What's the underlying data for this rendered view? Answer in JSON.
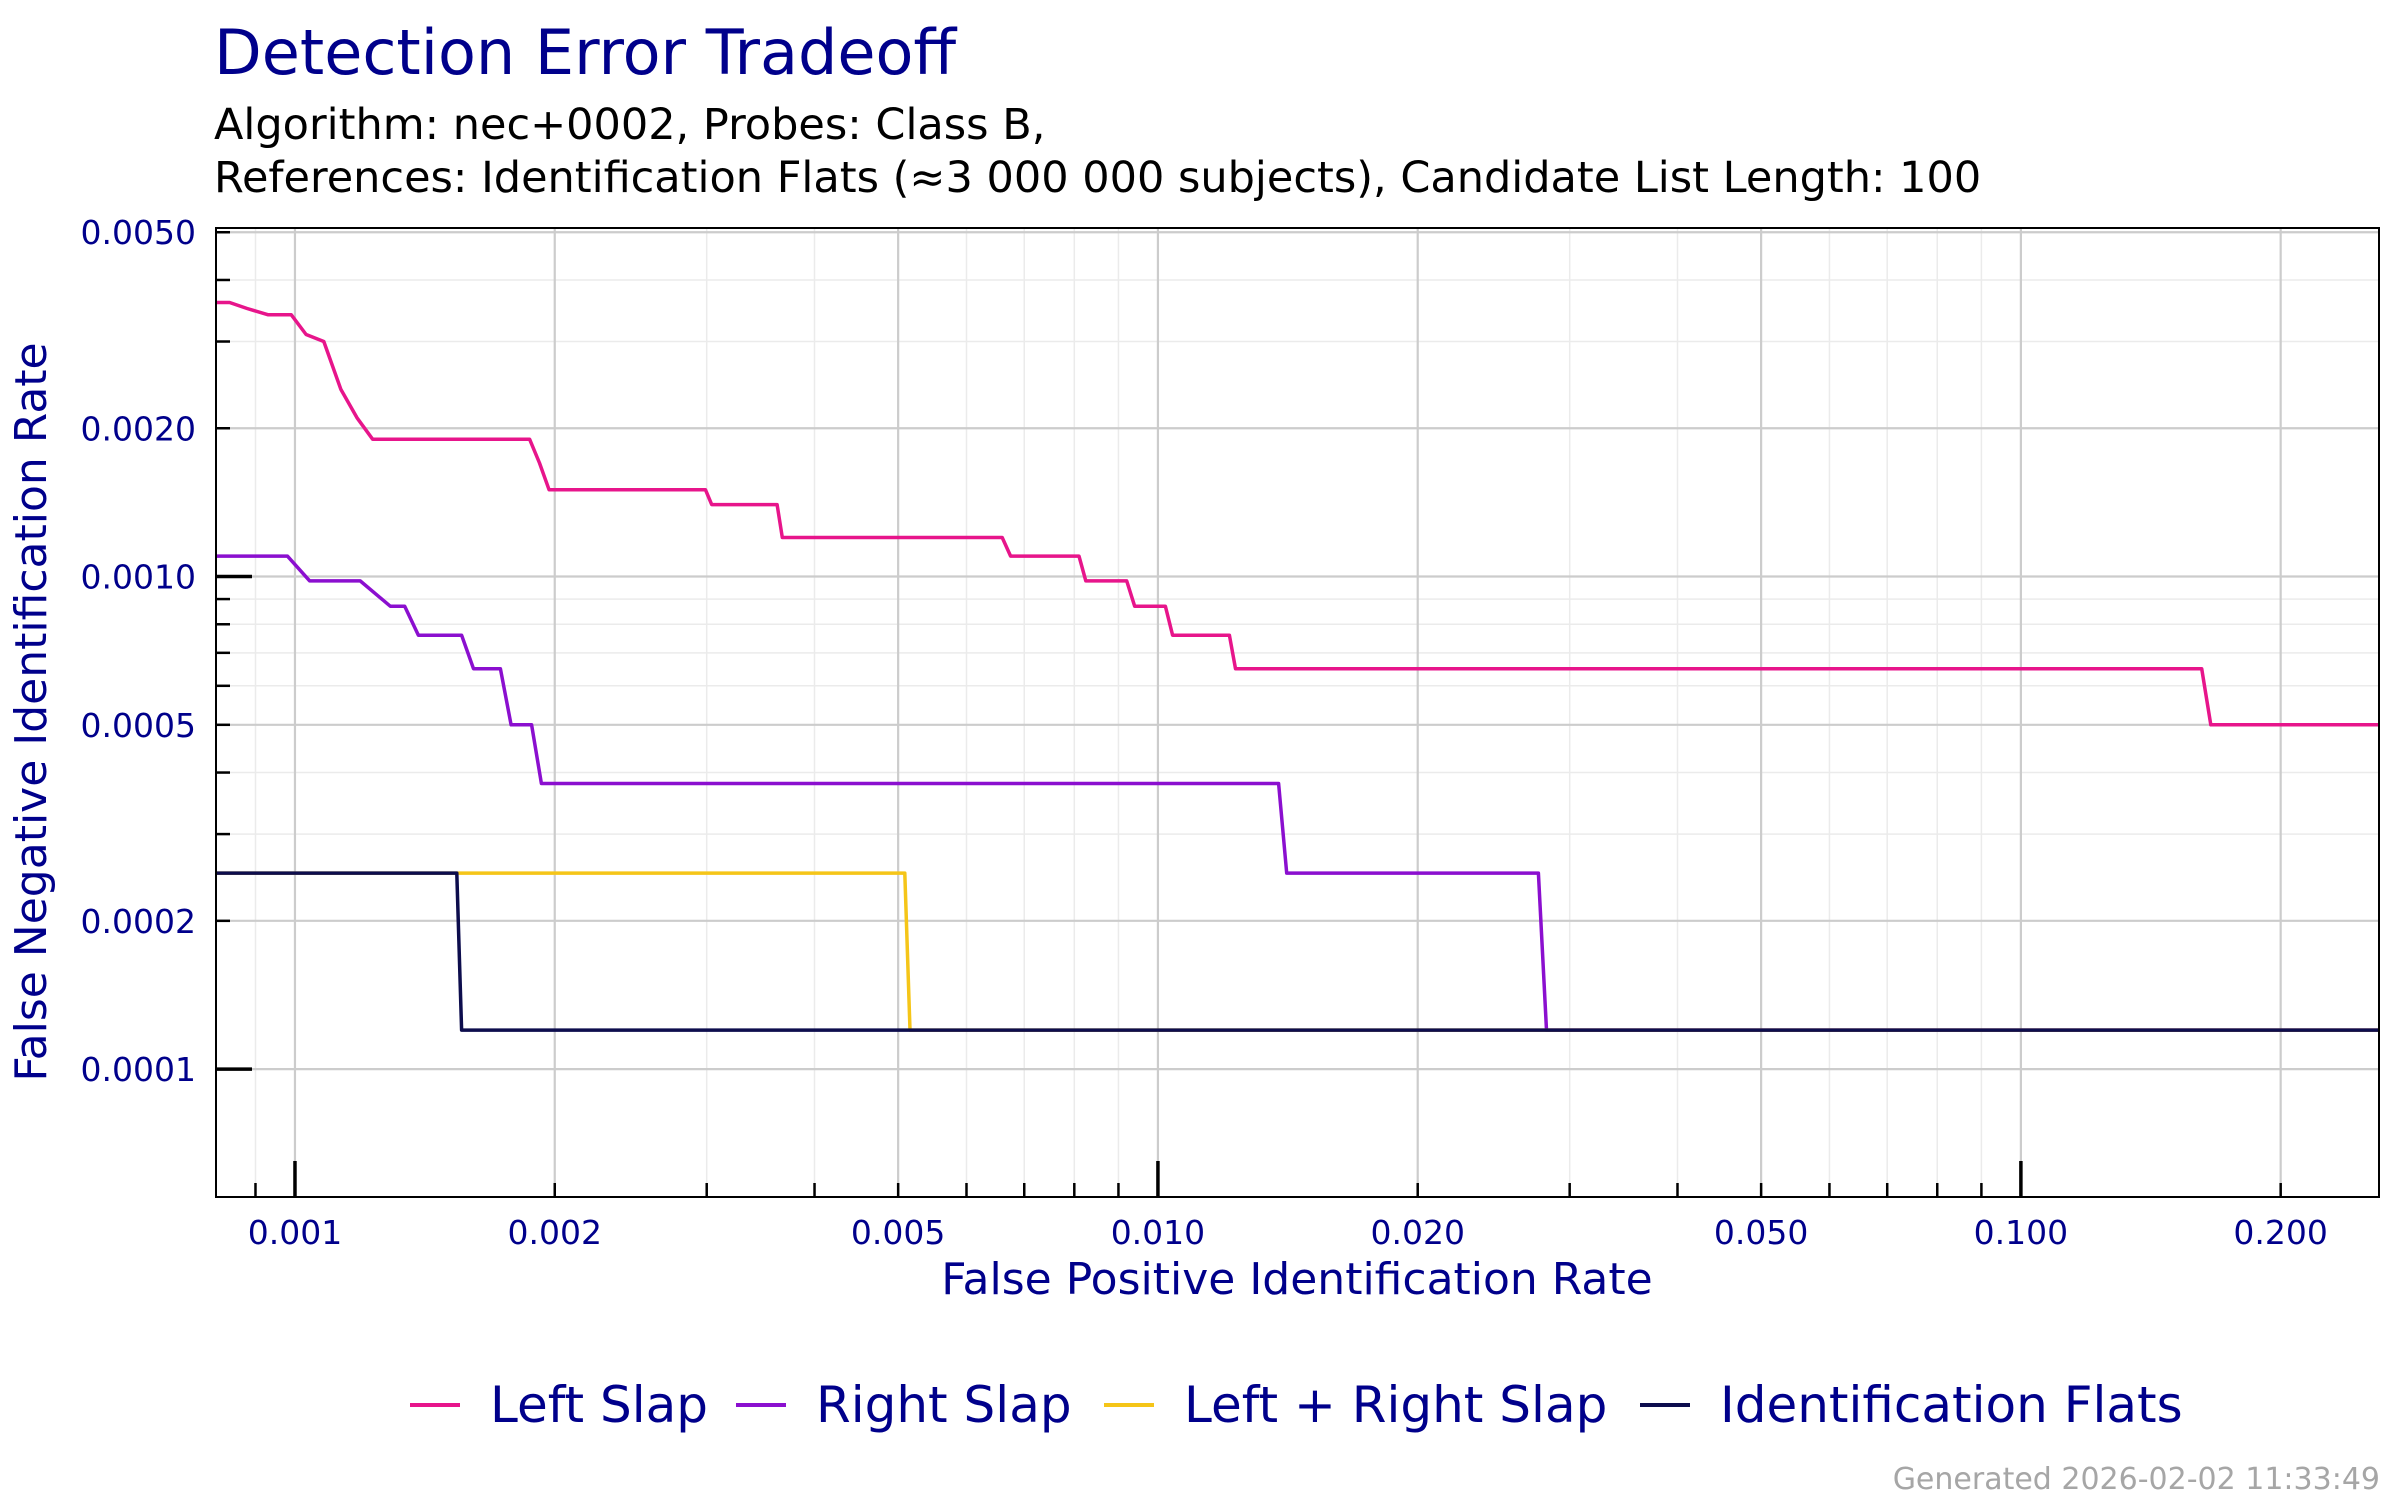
{
  "chart_data": {
    "type": "line",
    "title": "Detection Error Tradeoff",
    "subtitle_lines": [
      "Algorithm: nec+0002, Probes: Class B,",
      "References: Identification Flats (≈3 000 000 subjects), Candidate List Length: 100"
    ],
    "xlabel": "False Positive Identification Rate",
    "ylabel": "False Negative Identification Rate",
    "x_scale": "log",
    "y_scale": "log",
    "xlim": [
      0.00081,
      0.26
    ],
    "ylim": [
      5.5e-05,
      0.0051
    ],
    "x_ticks": [
      0.001,
      0.002,
      0.005,
      0.01,
      0.02,
      0.05,
      0.1,
      0.2
    ],
    "x_tick_labels": [
      "0.001",
      "0.002",
      "0.005",
      "0.010",
      "0.020",
      "0.050",
      "0.100",
      "0.200"
    ],
    "y_ticks": [
      0.0001,
      0.0002,
      0.0005,
      0.001,
      0.002,
      0.005
    ],
    "y_tick_labels": [
      "0.0001",
      "0.0002",
      "0.0005",
      "0.0010",
      "0.0020",
      "0.0050"
    ],
    "grid": true,
    "legend_position": "bottom",
    "series": [
      {
        "name": "Left Slap",
        "color": "#e7158b",
        "x": [
          0.00081,
          0.00084,
          0.00088,
          0.00093,
          0.00099,
          0.00103,
          0.00108,
          0.00113,
          0.00118,
          0.00123,
          0.00187,
          0.00192,
          0.00197,
          0.00299,
          0.00304,
          0.00362,
          0.00367,
          0.0066,
          0.00675,
          0.0081,
          0.00825,
          0.0092,
          0.0094,
          0.0102,
          0.0104,
          0.0121,
          0.0123,
          0.162,
          0.166,
          0.26
        ],
        "y": [
          0.0036,
          0.0036,
          0.0035,
          0.0034,
          0.0034,
          0.0031,
          0.003,
          0.0024,
          0.0021,
          0.0019,
          0.0019,
          0.0017,
          0.0015,
          0.0015,
          0.0014,
          0.0014,
          0.0012,
          0.0012,
          0.0011,
          0.0011,
          0.00098,
          0.00098,
          0.00087,
          0.00087,
          0.00076,
          0.00076,
          0.00065,
          0.00065,
          0.0005,
          0.0005
        ]
      },
      {
        "name": "Right Slap",
        "color": "#8b0fcf",
        "x": [
          0.00081,
          0.00098,
          0.00104,
          0.00119,
          0.00129,
          0.00134,
          0.00139,
          0.00156,
          0.00161,
          0.00173,
          0.00178,
          0.00188,
          0.00193,
          0.0138,
          0.0141,
          0.0276,
          0.0282,
          0.26
        ],
        "y": [
          0.0011,
          0.0011,
          0.00098,
          0.00098,
          0.00087,
          0.00087,
          0.00076,
          0.00076,
          0.00065,
          0.00065,
          0.0005,
          0.0005,
          0.00038,
          0.00038,
          0.00025,
          0.00025,
          0.00012,
          0.00012
        ]
      },
      {
        "name": "Left + Right Slap",
        "color": "#f5c518",
        "x": [
          0.00081,
          0.00156,
          0.00509,
          0.00516,
          0.26
        ],
        "y": [
          0.00025,
          0.00025,
          0.00025,
          0.00012,
          0.00012
        ]
      },
      {
        "name": "Identification Flats",
        "color": "#0d0d4d",
        "x": [
          0.00081,
          0.00154,
          0.00156,
          0.26
        ],
        "y": [
          0.00025,
          0.00025,
          0.00012,
          0.00012
        ]
      }
    ]
  },
  "footer": "Generated 2026-02-02 11:33:49"
}
